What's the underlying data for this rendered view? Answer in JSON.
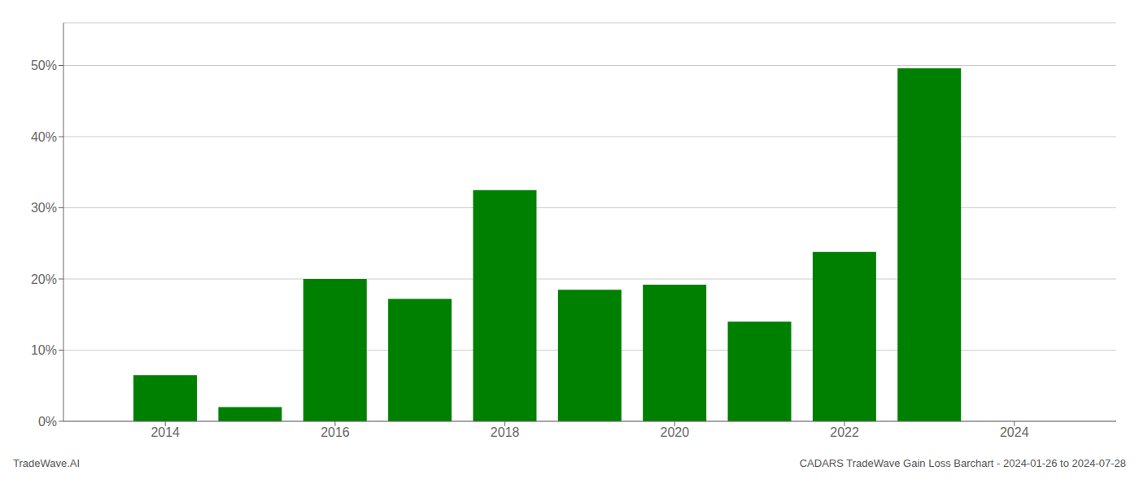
{
  "chart_data": {
    "type": "bar",
    "x": [
      2014,
      2015,
      2016,
      2017,
      2018,
      2019,
      2020,
      2021,
      2022,
      2023
    ],
    "values": [
      0.065,
      0.02,
      0.2,
      0.172,
      0.325,
      0.185,
      0.192,
      0.14,
      0.238,
      0.496
    ],
    "color": "#008000",
    "xlim": [
      2012.8,
      2025.2
    ],
    "xticks": [
      2014,
      2016,
      2018,
      2020,
      2022,
      2024
    ],
    "ylim": [
      0,
      0.56
    ],
    "yticks": [
      {
        "value": 0.0,
        "label": "0%"
      },
      {
        "value": 0.1,
        "label": "10%"
      },
      {
        "value": 0.2,
        "label": "20%"
      },
      {
        "value": 0.3,
        "label": "30%"
      },
      {
        "value": 0.4,
        "label": "40%"
      },
      {
        "value": 0.5,
        "label": "50%"
      }
    ],
    "grid": true,
    "annotations": [
      "TradeWave.AI",
      "CADARS TradeWave Gain Loss Barchart - 2024-01-26 to 2024-07-28"
    ]
  }
}
